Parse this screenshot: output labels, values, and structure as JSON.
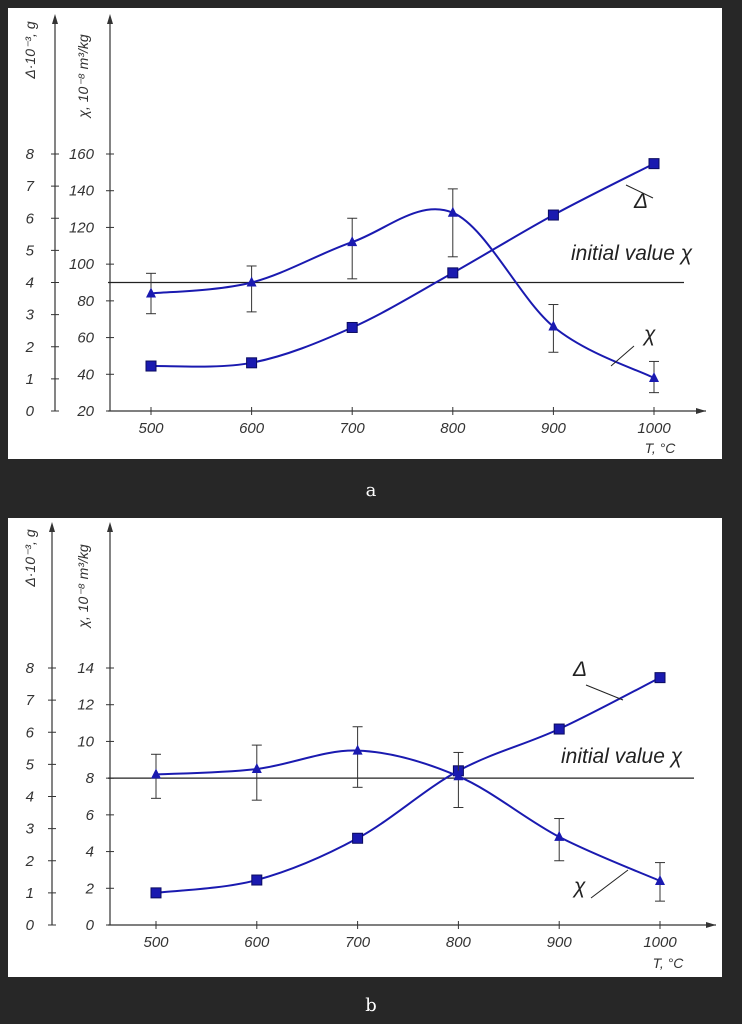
{
  "colors": {
    "background": "#272727",
    "panel": "#ffffff",
    "series": "#1a1ab0",
    "axis": "#333333"
  },
  "chart_data": [
    {
      "panel_caption": "a",
      "type": "line",
      "left_axis_label": "Δ·10⁻³, g",
      "right_axis_label": "χ, 10⁻⁸ m³/kg",
      "xlabel": "T, °C",
      "x": [
        500,
        600,
        700,
        800,
        900,
        1000
      ],
      "left_ticks": [
        "0",
        "1",
        "2",
        "3",
        "4",
        "5",
        "6",
        "7",
        "8"
      ],
      "chi_ticks": [
        "20",
        "40",
        "60",
        "80",
        "100",
        "120",
        "140",
        "160"
      ],
      "chi_ylim": [
        20,
        160
      ],
      "delta_ylim": [
        0,
        8
      ],
      "reference_line": {
        "label": "initial value χ",
        "chi_value": 90
      },
      "series": [
        {
          "name": "Δ",
          "axis": "delta",
          "marker": "square",
          "values": [
            1.4,
            1.5,
            2.6,
            4.3,
            6.1,
            7.7
          ]
        },
        {
          "name": "χ",
          "axis": "chi",
          "marker": "triangle",
          "values": [
            84,
            90,
            112,
            128,
            66,
            38
          ],
          "error": [
            [
              73,
              95
            ],
            [
              74,
              99
            ],
            [
              92,
              125
            ],
            [
              104,
              141
            ],
            [
              52,
              78
            ],
            [
              30,
              47
            ]
          ]
        }
      ],
      "grid": false
    },
    {
      "panel_caption": "b",
      "type": "line",
      "left_axis_label": "Δ·10⁻³, g",
      "right_axis_label": "χ, 10⁻⁸ m³/kg",
      "xlabel": "T, °C",
      "x": [
        500,
        600,
        700,
        800,
        900,
        1000
      ],
      "left_ticks": [
        "0",
        "1",
        "2",
        "3",
        "4",
        "5",
        "6",
        "7",
        "8"
      ],
      "chi_ticks": [
        "0",
        "2",
        "4",
        "6",
        "8",
        "10",
        "12",
        "14"
      ],
      "chi_ylim": [
        0,
        14
      ],
      "delta_ylim": [
        0,
        8
      ],
      "reference_line": {
        "label": "initial value χ",
        "chi_value": 8
      },
      "series": [
        {
          "name": "Δ",
          "axis": "delta",
          "marker": "square",
          "values": [
            1.0,
            1.4,
            2.7,
            4.8,
            6.1,
            7.7
          ]
        },
        {
          "name": "χ",
          "axis": "chi",
          "marker": "triangle",
          "values": [
            8.2,
            8.5,
            9.5,
            8.1,
            4.8,
            2.4
          ],
          "error": [
            [
              6.9,
              9.3
            ],
            [
              6.8,
              9.8
            ],
            [
              7.5,
              10.8
            ],
            [
              6.4,
              9.4
            ],
            [
              3.5,
              5.8
            ],
            [
              1.3,
              3.4
            ]
          ]
        }
      ],
      "grid": false
    }
  ]
}
